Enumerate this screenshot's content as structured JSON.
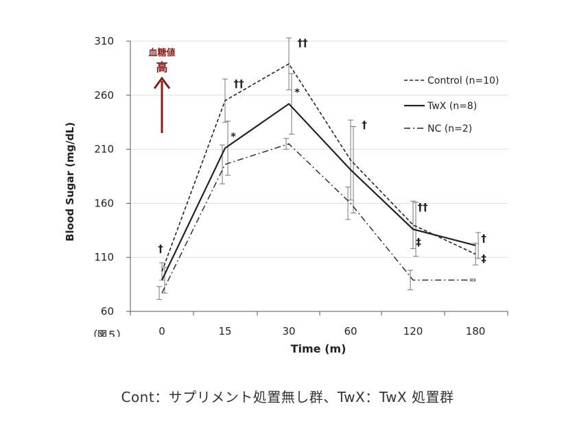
{
  "figure_label": "（図５）",
  "caption": "Cont：サプリメント処置無し群、TwX：TwX 処置群",
  "annotation": {
    "line1": "血糖値",
    "line2": "高",
    "color": "#8b1a1a"
  },
  "colors": {
    "axis": "#555555",
    "grid": "#dddddd",
    "series": "#222222",
    "errorbar": "#777777"
  },
  "chart_data": {
    "type": "line",
    "xlabel": "Time (m)",
    "ylabel": "Blood Sugar (mg/dL)",
    "categories": [
      "0",
      "15",
      "30",
      "60",
      "120",
      "180"
    ],
    "ylim": [
      60,
      310
    ],
    "yticks": [
      60,
      110,
      160,
      210,
      260,
      310
    ],
    "grid": "horizontal",
    "legend_position": "top-right",
    "series": [
      {
        "name": "Control (n=10)",
        "style": "dashed",
        "values": [
          97,
          255,
          289,
          200,
          140,
          113
        ],
        "errors": [
          8,
          20,
          24,
          37,
          22,
          10
        ],
        "marks": [
          "†",
          "††",
          "††",
          "†",
          "††",
          "†"
        ]
      },
      {
        "name": "TwX (n=8)",
        "style": "solid",
        "values": [
          89,
          211,
          252,
          191,
          136,
          121
        ],
        "errors": [
          12,
          25,
          28,
          40,
          25,
          12
        ],
        "marks": [
          "",
          "*",
          "*",
          "",
          "‡",
          "‡"
        ]
      },
      {
        "name": "NC (n=2)",
        "style": "dashdot",
        "values": [
          77,
          196,
          215,
          160,
          89,
          89
        ],
        "errors": [
          6,
          18,
          5,
          15,
          9,
          1
        ],
        "marks": [
          "",
          "",
          "",
          "",
          "",
          ""
        ]
      }
    ]
  }
}
